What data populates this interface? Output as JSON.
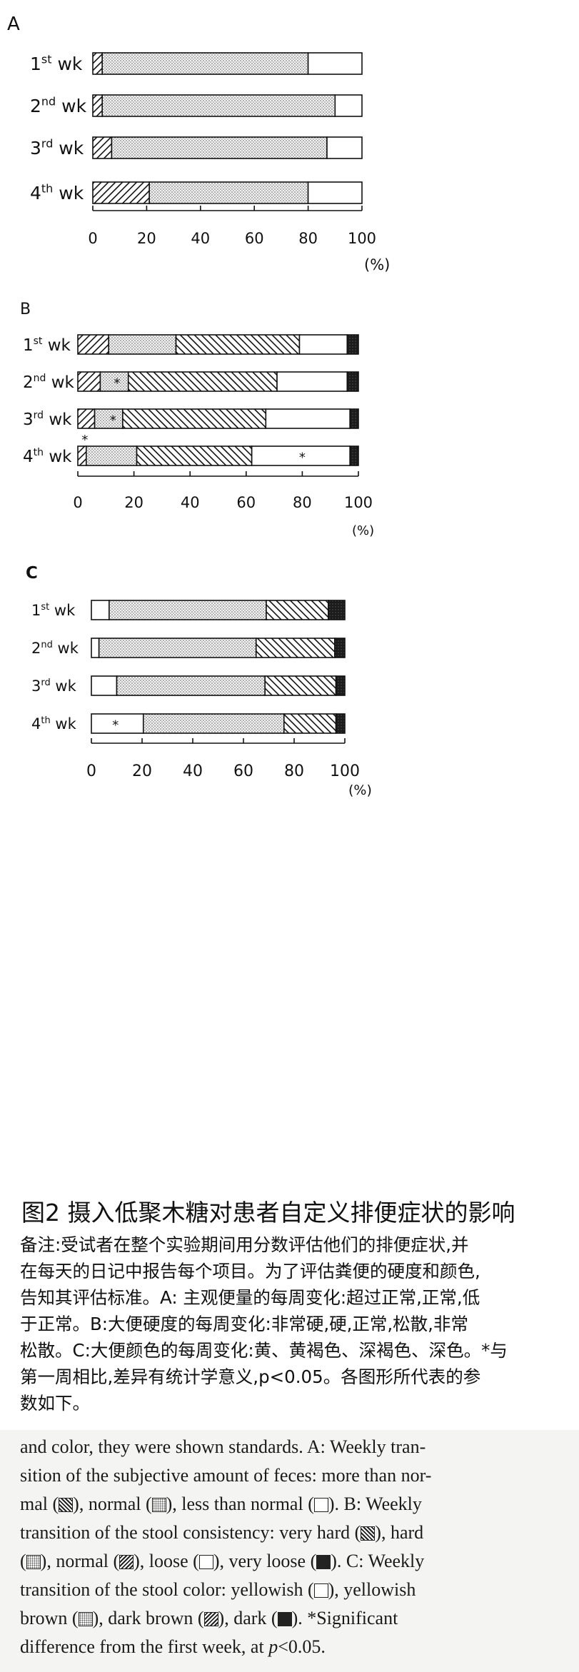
{
  "charts": [
    {
      "panel_label": "A",
      "rows": [
        {
          "base": "1",
          "sup": "st",
          "suffix": " wk"
        },
        {
          "base": "2",
          "sup": "nd",
          "suffix": " wk"
        },
        {
          "base": "3",
          "sup": "rd",
          "suffix": " wk"
        },
        {
          "base": "4",
          "sup": "th",
          "suffix": " wk"
        }
      ],
      "ticks": [
        "0",
        "20",
        "40",
        "60",
        "80",
        "100"
      ],
      "unit": "(%)"
    },
    {
      "panel_label": "B",
      "rows": [
        {
          "base": "1",
          "sup": "st",
          "suffix": " wk"
        },
        {
          "base": "2",
          "sup": "nd",
          "suffix": " wk"
        },
        {
          "base": "3",
          "sup": "rd",
          "suffix": " wk"
        },
        {
          "base": "4",
          "sup": "th",
          "suffix": " wk"
        }
      ],
      "ticks": [
        "0",
        "20",
        "40",
        "60",
        "80",
        "100"
      ],
      "unit": "(%)"
    },
    {
      "panel_label": "C",
      "rows": [
        {
          "base": "1",
          "sup": "st",
          "suffix": " wk"
        },
        {
          "base": "2",
          "sup": "nd",
          "suffix": " wk"
        },
        {
          "base": "3",
          "sup": "rd",
          "suffix": " wk"
        },
        {
          "base": "4",
          "sup": "th",
          "suffix": " wk"
        }
      ],
      "ticks": [
        "0",
        "20",
        "40",
        "60",
        "80",
        "100"
      ],
      "unit": "(%)"
    }
  ],
  "chart_data": [
    {
      "type": "bar",
      "orientation": "horizontal",
      "stacked": true,
      "title": "A",
      "categories": [
        "1st wk",
        "2nd wk",
        "3rd wk",
        "4th wk"
      ],
      "xlim": [
        0,
        100
      ],
      "series": [
        {
          "pattern": "hatch",
          "values": [
            3.5,
            3.5,
            7,
            21
          ]
        },
        {
          "pattern": "dots",
          "values": [
            76.5,
            86.5,
            80,
            59
          ]
        },
        {
          "pattern": "white",
          "values": [
            20,
            10,
            13,
            20
          ]
        }
      ],
      "annotations": []
    },
    {
      "type": "bar",
      "orientation": "horizontal",
      "stacked": true,
      "title": "B",
      "categories": [
        "1st wk",
        "2nd wk",
        "3rd wk",
        "4th wk"
      ],
      "xlim": [
        0,
        100
      ],
      "series": [
        {
          "pattern": "hatch",
          "values": [
            11,
            8,
            6,
            3
          ]
        },
        {
          "pattern": "dots",
          "values": [
            24,
            10,
            10,
            18
          ]
        },
        {
          "pattern": "reverse-hatch",
          "values": [
            44,
            53,
            51,
            41
          ]
        },
        {
          "pattern": "white",
          "values": [
            17,
            25,
            30,
            35
          ]
        },
        {
          "pattern": "dark",
          "values": [
            4,
            4,
            3,
            3
          ]
        }
      ],
      "annotations": [
        {
          "category": "2nd wk",
          "x": 14,
          "text": "*"
        },
        {
          "category": "3rd wk",
          "x": 12.5,
          "text": "*"
        },
        {
          "category": "4th wk",
          "x": 80,
          "text": "*"
        },
        {
          "category": "4th wk",
          "x": 2.5,
          "text": "*",
          "above": true
        }
      ]
    },
    {
      "type": "bar",
      "orientation": "horizontal",
      "stacked": true,
      "title": "C",
      "categories": [
        "1st wk",
        "2nd wk",
        "3rd wk",
        "4th wk"
      ],
      "xlim": [
        0,
        100
      ],
      "series": [
        {
          "pattern": "white",
          "values": [
            7,
            3,
            10,
            20.5
          ]
        },
        {
          "pattern": "dots",
          "values": [
            62,
            62,
            58.5,
            55.5
          ]
        },
        {
          "pattern": "reverse-hatch",
          "values": [
            24.5,
            31,
            28,
            20.5
          ]
        },
        {
          "pattern": "dark",
          "values": [
            6.5,
            4,
            3.5,
            3.5
          ]
        }
      ],
      "annotations": [
        {
          "category": "4th wk",
          "x": 9.5,
          "text": "*"
        }
      ]
    }
  ],
  "caption": "图2 摄入低聚木糖对患者自定义排便症状的影响",
  "note_lines": [
    "备注:受试者在整个实验期间用分数评估他们的排便症状,并",
    "在每天的日记中报告每个项目。为了评估粪便的硬度和颜色,",
    "告知其评估标准。A: 主观便量的每周变化:超过正常,正常,低",
    "于正常。B:大便硬度的每周变化:非常硬,硬,正常,松散,非常",
    "松散。C:大便颜色的每周变化:黄、黄褐色、深褐色、深色。*与",
    "第一周相比,差异有统计学意义,p<0.05。各图形所代表的参",
    "数如下。"
  ],
  "english": {
    "t01": "and color, they were shown standards. A: Weekly tran-",
    "t02": "sition of the subjective amount of feces: more than nor-",
    "t03": "mal (",
    "t04": "), normal (",
    "t05": "), less than normal (",
    "t06": "). B: Weekly",
    "t07": "transition of the stool consistency: very hard (",
    "t08": "), hard",
    "t09": "(",
    "t10": "), normal (",
    "t11": "), loose (",
    "t12": "), very loose (",
    "t13": "). C: Weekly",
    "t14": "transition of the stool color: yellowish (",
    "t15": "), yellowish",
    "t16": "brown (",
    "t17": "), dark brown (",
    "t18": "), dark (",
    "t19": "). *Significant",
    "t20": "difference from the first week, at ",
    "t21": "p",
    "t22": "<0.05."
  },
  "swatches": {
    "hatch": "diagonal-hatch-swatch",
    "dots": "dotted-swatch",
    "reverse": "reverse-hatch-swatch",
    "dark": "dark-swatch",
    "white": "white-swatch"
  }
}
